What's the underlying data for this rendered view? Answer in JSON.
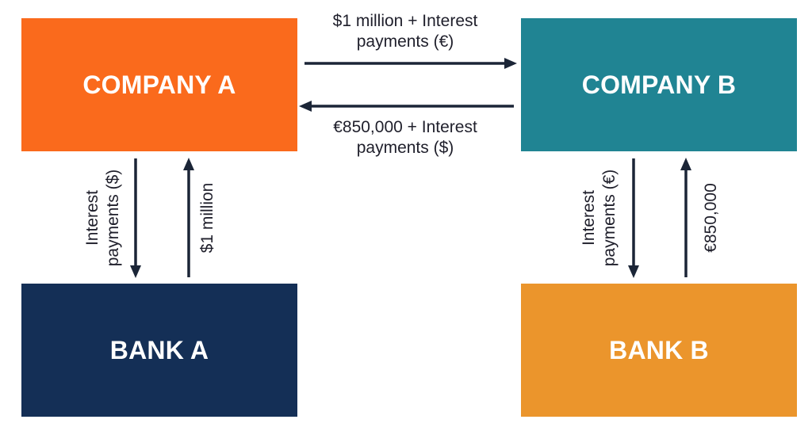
{
  "colors": {
    "company_a": "#fa6a1c",
    "company_b": "#208493",
    "bank_a": "#142f56",
    "bank_b": "#eb952c",
    "arrow": "#1b2537",
    "text": "#1f1f2b"
  },
  "boxes": {
    "company_a": "COMPANY A",
    "company_b": "COMPANY B",
    "bank_a": "BANK A",
    "bank_b": "BANK B"
  },
  "flows": {
    "a_to_b": {
      "line1": "$1 million + Interest",
      "line2": "payments (€)"
    },
    "b_to_a": {
      "line1": "€850,000 + Interest",
      "line2": "payments ($)"
    },
    "company_a_to_bank_a": {
      "line1": "Interest",
      "line2": "payments ($)"
    },
    "bank_a_to_company_a": {
      "line1": "$1 million"
    },
    "company_b_to_bank_b": {
      "line1": "Interest",
      "line2": "payments (€)"
    },
    "bank_b_to_company_b": {
      "line1": "€850,000"
    }
  }
}
